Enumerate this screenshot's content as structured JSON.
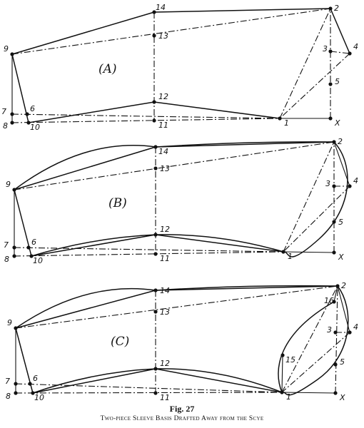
{
  "figure": {
    "number": "Fig. 27",
    "caption": "Two-piece Sleeve Basis Drafted Away from the Scye"
  },
  "panels": [
    {
      "id": "A",
      "label": "(A)",
      "points": [
        {
          "label": "1"
        },
        {
          "label": "2"
        },
        {
          "label": "3"
        },
        {
          "label": "4"
        },
        {
          "label": "5"
        },
        {
          "label": "6"
        },
        {
          "label": "7"
        },
        {
          "label": "8"
        },
        {
          "label": "9"
        },
        {
          "label": "10"
        },
        {
          "label": "11"
        },
        {
          "label": "12"
        },
        {
          "label": "13"
        },
        {
          "label": "14"
        },
        {
          "label": "X"
        }
      ]
    },
    {
      "id": "B",
      "label": "(B)",
      "points": [
        {
          "label": "1"
        },
        {
          "label": "2"
        },
        {
          "label": "3"
        },
        {
          "label": "4"
        },
        {
          "label": "5"
        },
        {
          "label": "6"
        },
        {
          "label": "7"
        },
        {
          "label": "8"
        },
        {
          "label": "9"
        },
        {
          "label": "10"
        },
        {
          "label": "11"
        },
        {
          "label": "12"
        },
        {
          "label": "13"
        },
        {
          "label": "14"
        },
        {
          "label": "X"
        }
      ]
    },
    {
      "id": "C",
      "label": "(C)",
      "points": [
        {
          "label": "1"
        },
        {
          "label": "2"
        },
        {
          "label": "3"
        },
        {
          "label": "4"
        },
        {
          "label": "5"
        },
        {
          "label": "6"
        },
        {
          "label": "7"
        },
        {
          "label": "8"
        },
        {
          "label": "9"
        },
        {
          "label": "10"
        },
        {
          "label": "11"
        },
        {
          "label": "12"
        },
        {
          "label": "13"
        },
        {
          "label": "14"
        },
        {
          "label": "15"
        },
        {
          "label": "16"
        },
        {
          "label": "X"
        }
      ]
    }
  ]
}
